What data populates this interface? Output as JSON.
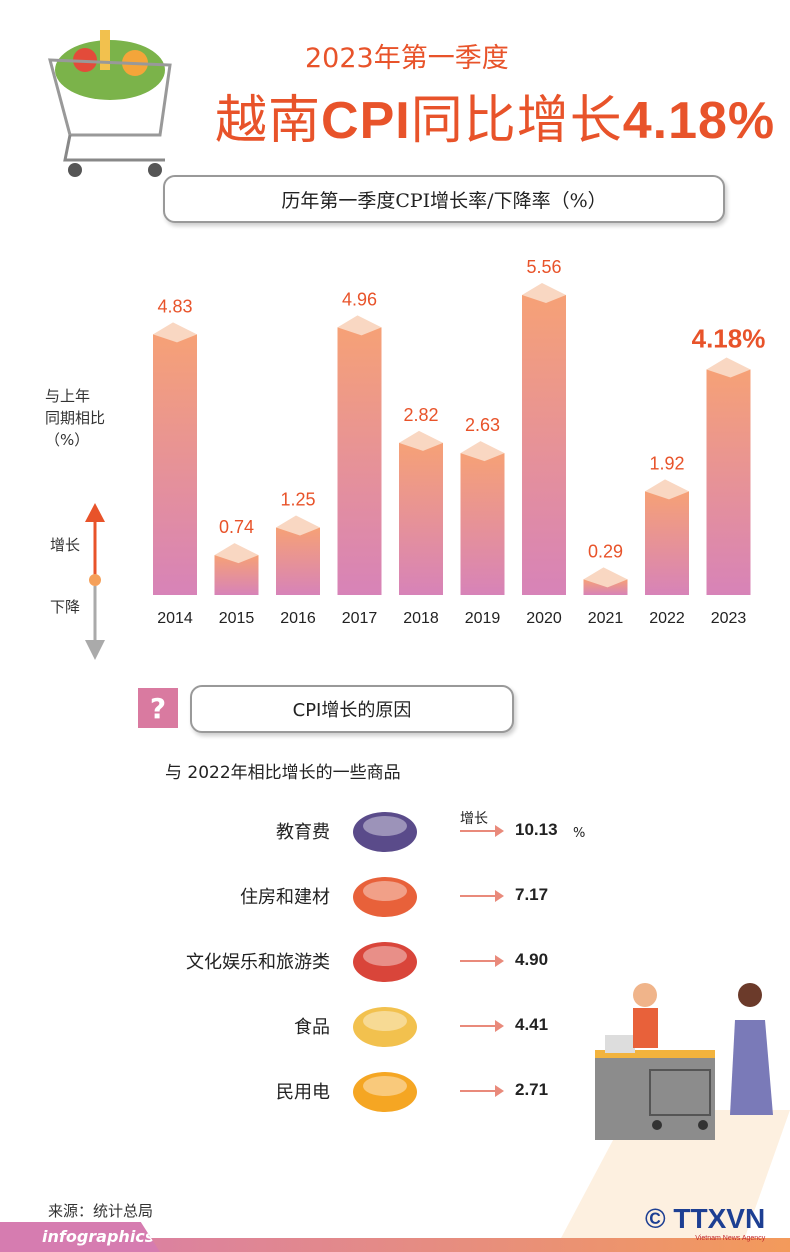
{
  "header": {
    "subtitle": "2023年第一季度",
    "title_pre": "越南",
    "title_cpi": "CPI",
    "title_mid": "同比增长",
    "title_val": "4.18%"
  },
  "chart_data": {
    "type": "bar",
    "title": "历年第一季度CPI增长率/下降率（%）",
    "categories": [
      "2014",
      "2015",
      "2016",
      "2017",
      "2018",
      "2019",
      "2020",
      "2021",
      "2022",
      "2023"
    ],
    "values": [
      4.83,
      0.74,
      1.25,
      4.96,
      2.82,
      2.63,
      5.56,
      0.29,
      1.92,
      4.18
    ],
    "labels": [
      "4.83",
      "0.74",
      "1.25",
      "4.96",
      "2.82",
      "2.63",
      "5.56",
      "0.29",
      "1.92",
      "4.18%"
    ],
    "ylabel": "与上年同期相比（%）",
    "ylim": [
      0,
      5.56
    ],
    "legend": {
      "up": "增长",
      "down": "下降"
    },
    "colors": {
      "bar_top": "#f6a176",
      "bar_bottom": "#d783b8",
      "cap": "#f9d7c2",
      "label": "#e8532a"
    }
  },
  "ylabel_lines": [
    "与上年",
    "同期相比",
    "（%）"
  ],
  "reasons": {
    "title": "CPI增长的原因",
    "subtitle": "与 2022年相比增长的一些商品",
    "increase_label": "增长",
    "unit": "%",
    "items": [
      {
        "label": "教育费",
        "value": "10.13",
        "icon": "graduation-cap-books-icon"
      },
      {
        "label": "住房和建材",
        "value": "7.17",
        "icon": "brick-icon"
      },
      {
        "label": "文化娱乐和旅游类",
        "value": "4.90",
        "icon": "popcorn-movie-icon"
      },
      {
        "label": "食品",
        "value": "4.41",
        "icon": "food-plate-icon"
      },
      {
        "label": "民用电",
        "value": "2.71",
        "icon": "light-bulb-plug-icon"
      }
    ]
  },
  "footer": {
    "source": "来源：统计总局",
    "site": "infographics.vn",
    "logo": "TTXVN",
    "logo_sub": "Vietnam News Agency",
    "copyright": "©"
  }
}
